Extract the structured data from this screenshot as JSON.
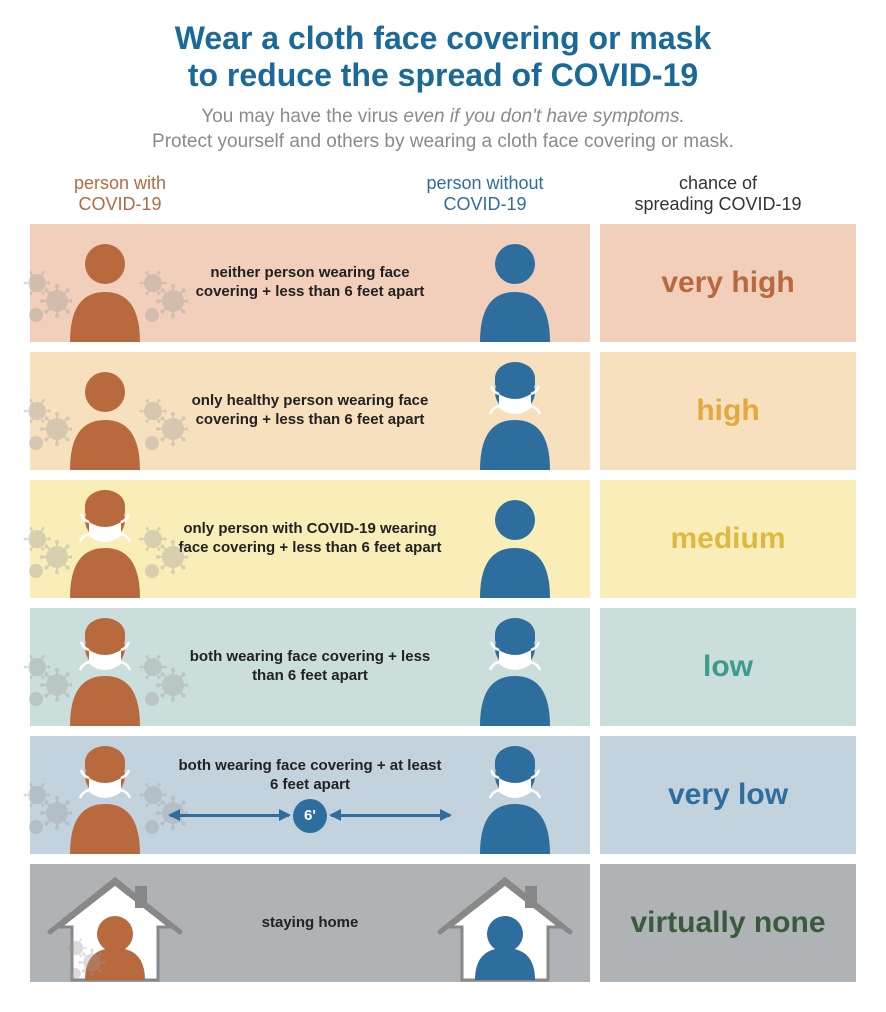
{
  "title_line1": "Wear a cloth face covering or mask",
  "title_line2": "to reduce the spread of COVID-19",
  "title_color": "#1a6a99",
  "subtitle_line1_pre": "You may have the virus ",
  "subtitle_line1_em": "even if you don't have symptoms.",
  "subtitle_line2": "Protect yourself and others by wearing a cloth face covering or mask.",
  "subtitle_color": "#8a8a8a",
  "columns": {
    "c1": "person with\nCOVID-19",
    "c1_color": "#b86a3e",
    "c2": "person without\nCOVID-19",
    "c2_color": "#2e6e9e",
    "c3": "chance of\nspreading COVID-19",
    "c3_color": "#333333"
  },
  "person_colors": {
    "infected": "#b86a3e",
    "healthy": "#2e6e9e",
    "mask": "#ffffff",
    "virus": "#9a9a9a"
  },
  "rows": [
    {
      "bg": "#f1cfba",
      "chance_bg": "#f1cfba",
      "desc": "neither person wearing face covering + less than 6 feet apart",
      "chance": "very high",
      "chance_color": "#b86a3e",
      "p1_mask": false,
      "p2_mask": false,
      "p1_hat": false,
      "p2_hat": false,
      "distance": null,
      "house": false
    },
    {
      "bg": "#f6e0bd",
      "chance_bg": "#f6e0bd",
      "desc": "only healthy person wearing face covering + less than 6 feet apart",
      "chance": "high",
      "chance_color": "#e5a83e",
      "p1_mask": false,
      "p2_mask": true,
      "p1_hat": false,
      "p2_hat": true,
      "distance": null,
      "house": false
    },
    {
      "bg": "#f9edb8",
      "chance_bg": "#f9edb8",
      "desc": "only person with COVID-19 wearing face covering + less than 6 feet apart",
      "chance": "medium",
      "chance_color": "#e0b83e",
      "p1_mask": true,
      "p2_mask": false,
      "p1_hat": true,
      "p2_hat": false,
      "distance": null,
      "house": false
    },
    {
      "bg": "#cadedb",
      "chance_bg": "#cadedb",
      "desc": "both wearing face covering + less than 6 feet apart",
      "chance": "low",
      "chance_color": "#3e9a8a",
      "p1_mask": true,
      "p2_mask": true,
      "p1_hat": true,
      "p2_hat": true,
      "distance": null,
      "house": false
    },
    {
      "bg": "#c3d3de",
      "chance_bg": "#c3d3de",
      "desc": "both wearing face covering + at least 6 feet apart",
      "chance": "very low",
      "chance_color": "#2e6e9e",
      "p1_mask": true,
      "p2_mask": true,
      "p1_hat": true,
      "p2_hat": true,
      "distance": "6'",
      "distance_color": "#2e6e9e",
      "house": false
    },
    {
      "bg": "#b0b3b6",
      "chance_bg": "#b0b3b6",
      "desc": "staying home",
      "chance": "virtually none",
      "chance_color": "#3a5a3e",
      "p1_mask": false,
      "p2_mask": false,
      "p1_hat": false,
      "p2_hat": false,
      "distance": null,
      "house": true
    }
  ]
}
